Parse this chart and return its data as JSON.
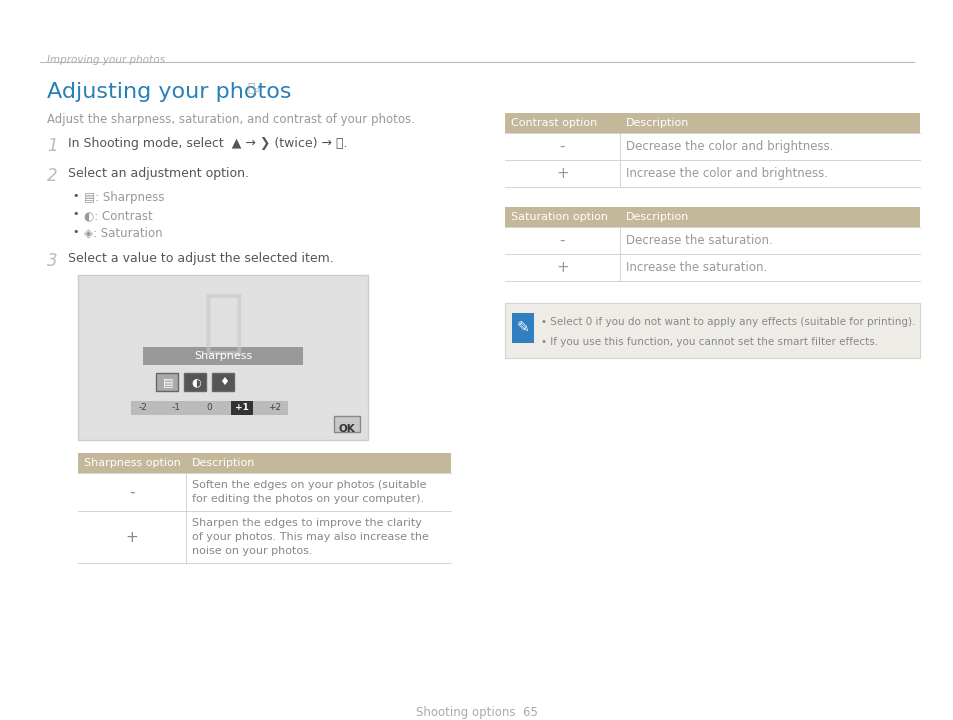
{
  "bg_color": "#ffffff",
  "page_header": "Improving your photos",
  "title": "Adjusting your photos",
  "title_color": "#2980b9",
  "subtitle": "Adjust the sharpness, saturation, and contrast of your photos.",
  "text_dark": "#555555",
  "text_mid": "#777777",
  "text_light": "#aaaaaa",
  "header_line_color": "#bbbbbb",
  "table_header_bg": "#C4B89A",
  "table_header_color": "#ffffff",
  "table_line_color": "#cccccc",
  "sharpness_table": {
    "header": [
      "Sharpness option",
      "Description"
    ],
    "rows": [
      [
        "-",
        "Soften the edges on your photos (suitable\nfor editing the photos on your computer)."
      ],
      [
        "+",
        "Sharpen the edges to improve the clarity\nof your photos. This may also increase the\nnoise on your photos."
      ]
    ]
  },
  "contrast_table": {
    "header": [
      "Contrast option",
      "Description"
    ],
    "rows": [
      [
        "-",
        "Decrease the color and brightness."
      ],
      [
        "+",
        "Increase the color and brightness."
      ]
    ]
  },
  "saturation_table": {
    "header": [
      "Saturation option",
      "Description"
    ],
    "rows": [
      [
        "-",
        "Decrease the saturation."
      ],
      [
        "+",
        "Increase the saturation."
      ]
    ]
  },
  "note_bg": "#eeece6",
  "note_border": "#d8d4c8",
  "note_icon_color": "#2f7fc1",
  "note_lines": [
    [
      "Select ",
      "0",
      " if you do not want to apply any effects (suitable for printing)."
    ],
    [
      "If you use this function, you cannot set the smart filter effects."
    ]
  ],
  "note_color": "#888888",
  "footer_text": "Shooting options  65"
}
